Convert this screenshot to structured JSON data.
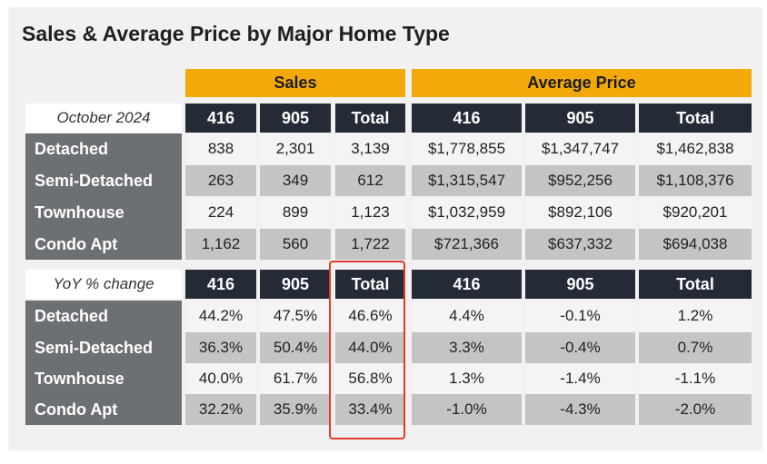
{
  "title": "Sales & Average Price by Major Home Type",
  "group_headers": {
    "sales": "Sales",
    "average_price": "Average Price"
  },
  "section1": {
    "label": "October 2024",
    "columns": [
      "416",
      "905",
      "Total",
      "416",
      "905",
      "Total"
    ],
    "rows": [
      {
        "type": "Detached",
        "values": [
          "838",
          "2,301",
          "3,139",
          "$1,778,855",
          "$1,347,747",
          "$1,462,838"
        ]
      },
      {
        "type": "Semi-Detached",
        "values": [
          "263",
          "349",
          "612",
          "$1,315,547",
          "$952,256",
          "$1,108,376"
        ]
      },
      {
        "type": "Townhouse",
        "values": [
          "224",
          "899",
          "1,123",
          "$1,032,959",
          "$892,106",
          "$920,201"
        ]
      },
      {
        "type": "Condo Apt",
        "values": [
          "1,162",
          "560",
          "1,722",
          "$721,366",
          "$637,332",
          "$694,038"
        ]
      }
    ]
  },
  "section2": {
    "label": "YoY % change",
    "columns": [
      "416",
      "905",
      "Total",
      "416",
      "905",
      "Total"
    ],
    "rows": [
      {
        "type": "Detached",
        "values": [
          "44.2%",
          "47.5%",
          "46.6%",
          "4.4%",
          "-0.1%",
          "1.2%"
        ]
      },
      {
        "type": "Semi-Detached",
        "values": [
          "36.3%",
          "50.4%",
          "44.0%",
          "3.3%",
          "-0.4%",
          "0.7%"
        ]
      },
      {
        "type": "Townhouse",
        "values": [
          "40.0%",
          "61.7%",
          "56.8%",
          "1.3%",
          "-1.4%",
          "-1.1%"
        ]
      },
      {
        "type": "Condo Apt",
        "values": [
          "32.2%",
          "35.9%",
          "33.4%",
          "-1.0%",
          "-4.3%",
          "-2.0%"
        ]
      }
    ]
  },
  "colors": {
    "gold_header": "#f3a90a",
    "dark_header": "#252a37",
    "row_header": "#6c6f73",
    "highlight": "#e53a2a"
  }
}
